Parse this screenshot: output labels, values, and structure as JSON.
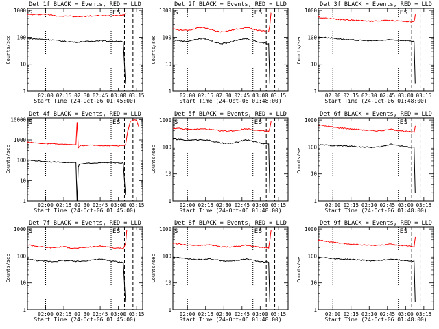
{
  "chart_data": [
    {
      "type": "line",
      "title": "Det 1f BLACK = Events, RED = LLD",
      "xlabel": "Start Time (24-Oct-06 01:45:00)",
      "ylabel": "Counts/sec",
      "x_ticks": [
        "02:00",
        "02:15",
        "02:30",
        "02:45",
        "03:00",
        "03:15"
      ],
      "y_ticks": [
        "1",
        "10",
        "100",
        "1000"
      ],
      "yscale": "log",
      "ylim": [
        1,
        1200
      ],
      "markers": [
        "S",
        "E",
        "S"
      ],
      "series": [
        {
          "color": "#ff0000",
          "x": [
            "01:45",
            "01:50",
            "01:55",
            "02:00",
            "02:05",
            "02:10",
            "02:15",
            "02:20",
            "02:25",
            "02:30",
            "02:35",
            "02:40",
            "02:45",
            "02:50",
            "02:55",
            "03:00",
            "03:04",
            "03:06"
          ],
          "values": [
            700,
            690,
            700,
            720,
            660,
            620,
            600,
            610,
            580,
            600,
            610,
            620,
            630,
            620,
            640,
            650,
            660,
            760
          ]
        },
        {
          "color": "#000000",
          "x": [
            "01:45",
            "01:50",
            "01:55",
            "02:00",
            "02:05",
            "02:10",
            "02:15",
            "02:20",
            "02:25",
            "02:30",
            "02:35",
            "02:40",
            "02:45",
            "02:50",
            "02:55",
            "03:00",
            "03:04",
            "03:06"
          ],
          "values": [
            90,
            88,
            85,
            83,
            80,
            75,
            70,
            68,
            66,
            68,
            70,
            72,
            75,
            72,
            70,
            72,
            66,
            2
          ]
        }
      ]
    },
    {
      "type": "line",
      "title": "Det 2f BLACK = Events, RED = LLD",
      "xlabel": "Start Time (24-Oct-06 01:48:00)",
      "ylabel": "Counts/sec",
      "x_ticks": [
        "02:00",
        "02:15",
        "02:30",
        "02:45",
        "03:00",
        "03:15"
      ],
      "y_ticks": [
        "1",
        "10",
        "100",
        "1000"
      ],
      "yscale": "log",
      "ylim": [
        1,
        1200
      ],
      "markers": [
        "S",
        "E",
        "S"
      ],
      "series": [
        {
          "color": "#ff0000",
          "x": [
            "01:48",
            "01:53",
            "01:58",
            "02:03",
            "02:08",
            "02:13",
            "02:18",
            "02:23",
            "02:28",
            "02:33",
            "02:38",
            "02:43",
            "02:48",
            "02:53",
            "02:58",
            "03:03",
            "03:07",
            "03:08",
            "03:09"
          ],
          "values": [
            200,
            190,
            180,
            190,
            220,
            230,
            200,
            170,
            160,
            170,
            190,
            210,
            230,
            210,
            180,
            170,
            160,
            300,
            800
          ]
        },
        {
          "color": "#000000",
          "x": [
            "01:48",
            "01:53",
            "01:58",
            "02:03",
            "02:08",
            "02:13",
            "02:18",
            "02:23",
            "02:28",
            "02:33",
            "02:38",
            "02:43",
            "02:48",
            "02:53",
            "02:58",
            "03:03",
            "03:07",
            "03:08"
          ],
          "values": [
            80,
            75,
            70,
            75,
            85,
            90,
            78,
            65,
            58,
            62,
            72,
            80,
            90,
            80,
            68,
            62,
            58,
            2
          ]
        }
      ]
    },
    {
      "type": "line",
      "title": "Det 3f BLACK = Events, RED = LLD",
      "xlabel": "Start Time (24-Oct-06 01:48:00)",
      "ylabel": "Counts/sec",
      "x_ticks": [
        "02:00",
        "02:15",
        "02:30",
        "02:45",
        "03:00",
        "03:15"
      ],
      "y_ticks": [
        "1",
        "10",
        "100",
        "1000"
      ],
      "yscale": "log",
      "ylim": [
        1,
        1200
      ],
      "markers": [
        "E",
        "S"
      ],
      "series": [
        {
          "color": "#ff0000",
          "x": [
            "01:48",
            "01:53",
            "01:58",
            "02:03",
            "02:08",
            "02:13",
            "02:18",
            "02:23",
            "02:28",
            "02:33",
            "02:38",
            "02:43",
            "02:48",
            "02:53",
            "02:58",
            "03:03",
            "03:07",
            "03:08"
          ],
          "values": [
            550,
            520,
            500,
            480,
            460,
            440,
            430,
            420,
            410,
            400,
            410,
            420,
            430,
            410,
            400,
            390,
            380,
            700
          ]
        },
        {
          "color": "#000000",
          "x": [
            "01:48",
            "01:53",
            "01:58",
            "02:03",
            "02:08",
            "02:13",
            "02:18",
            "02:23",
            "02:28",
            "02:33",
            "02:38",
            "02:43",
            "02:48",
            "02:53",
            "02:58",
            "03:03",
            "03:07",
            "03:08"
          ],
          "values": [
            100,
            98,
            95,
            90,
            85,
            80,
            78,
            76,
            75,
            74,
            76,
            78,
            80,
            78,
            76,
            74,
            70,
            2
          ]
        }
      ]
    },
    {
      "type": "line",
      "title": "Det 4f BLACK = Events, RED = LLD",
      "xlabel": "Start Time (24-Oct-06 01:45:00)",
      "ylabel": "Counts/sec",
      "x_ticks": [
        "02:00",
        "02:15",
        "02:30",
        "02:45",
        "03:00",
        "03:15"
      ],
      "y_ticks": [
        "1",
        "10",
        "100",
        "1000",
        "10000"
      ],
      "yscale": "log",
      "ylim": [
        1,
        12000
      ],
      "markers": [
        "S",
        "E",
        "S"
      ],
      "series": [
        {
          "color": "#ff0000",
          "x": [
            "01:45",
            "01:50",
            "01:55",
            "02:00",
            "02:05",
            "02:10",
            "02:15",
            "02:20",
            "02:25",
            "02:26",
            "02:27",
            "02:28",
            "02:30",
            "02:35",
            "02:40",
            "02:45",
            "02:50",
            "02:55",
            "03:00",
            "03:04",
            "03:06",
            "03:08",
            "03:10",
            "03:13",
            "03:15",
            "03:17"
          ],
          "values": [
            800,
            720,
            680,
            660,
            640,
            620,
            600,
            580,
            560,
            7000,
            400,
            500,
            520,
            540,
            540,
            530,
            520,
            520,
            510,
            520,
            600,
            3000,
            8000,
            9500,
            9000,
            4000
          ]
        },
        {
          "color": "#000000",
          "x": [
            "01:45",
            "01:50",
            "01:55",
            "02:00",
            "02:05",
            "02:10",
            "02:15",
            "02:20",
            "02:25",
            "02:26",
            "02:27",
            "02:28",
            "02:30",
            "02:35",
            "02:40",
            "02:45",
            "02:50",
            "02:55",
            "03:00",
            "03:04",
            "03:06"
          ],
          "values": [
            100,
            95,
            90,
            85,
            82,
            80,
            78,
            76,
            74,
            1,
            50,
            60,
            65,
            70,
            72,
            74,
            75,
            75,
            74,
            70,
            2
          ]
        }
      ]
    },
    {
      "type": "line",
      "title": "Det 5f BLACK = Events, RED = LLD",
      "xlabel": "Start Time (24-Oct-06 01:48:00)",
      "ylabel": "Counts/sec",
      "x_ticks": [
        "02:00",
        "02:15",
        "02:30",
        "02:45",
        "03:00",
        "03:15"
      ],
      "y_ticks": [
        "1",
        "10",
        "100",
        "1000"
      ],
      "yscale": "log",
      "ylim": [
        1,
        1200
      ],
      "markers": [
        "S",
        "E",
        "S"
      ],
      "series": [
        {
          "color": "#ff0000",
          "x": [
            "01:48",
            "01:53",
            "01:58",
            "02:03",
            "02:08",
            "02:13",
            "02:18",
            "02:23",
            "02:28",
            "02:33",
            "02:38",
            "02:43",
            "02:48",
            "02:53",
            "02:58",
            "03:03",
            "03:07",
            "03:08",
            "03:09"
          ],
          "values": [
            500,
            480,
            460,
            450,
            460,
            470,
            450,
            420,
            400,
            390,
            400,
            430,
            480,
            450,
            410,
            390,
            380,
            500,
            900
          ]
        },
        {
          "color": "#000000",
          "x": [
            "01:48",
            "01:53",
            "01:58",
            "02:03",
            "02:08",
            "02:13",
            "02:18",
            "02:23",
            "02:28",
            "02:33",
            "02:38",
            "02:43",
            "02:48",
            "02:53",
            "02:58",
            "03:03",
            "03:07",
            "03:08"
          ],
          "values": [
            200,
            190,
            180,
            180,
            185,
            190,
            175,
            155,
            140,
            135,
            140,
            160,
            190,
            170,
            145,
            135,
            130,
            2
          ]
        }
      ]
    },
    {
      "type": "line",
      "title": "Det 6f BLACK = Events, RED = LLD",
      "xlabel": "Start Time (24-Oct-06 01:48:00)",
      "ylabel": "Counts/sec",
      "x_ticks": [
        "02:00",
        "02:15",
        "02:30",
        "02:45",
        "03:00",
        "03:15"
      ],
      "y_ticks": [
        "1",
        "10",
        "100",
        "1000"
      ],
      "yscale": "log",
      "ylim": [
        1,
        1200
      ],
      "markers": [
        "E",
        "S"
      ],
      "series": [
        {
          "color": "#ff0000",
          "x": [
            "01:48",
            "01:53",
            "01:58",
            "02:03",
            "02:08",
            "02:13",
            "02:18",
            "02:23",
            "02:28",
            "02:33",
            "02:38",
            "02:43",
            "02:48",
            "02:53",
            "02:58",
            "03:03",
            "03:07",
            "03:08"
          ],
          "values": [
            650,
            600,
            560,
            520,
            500,
            480,
            460,
            440,
            420,
            400,
            400,
            420,
            450,
            420,
            390,
            370,
            350,
            600
          ]
        },
        {
          "color": "#000000",
          "x": [
            "01:48",
            "01:53",
            "01:58",
            "02:03",
            "02:08",
            "02:13",
            "02:18",
            "02:23",
            "02:28",
            "02:33",
            "02:38",
            "02:43",
            "02:48",
            "02:53",
            "02:58",
            "03:03",
            "03:07",
            "03:08"
          ],
          "values": [
            120,
            118,
            115,
            112,
            110,
            108,
            105,
            100,
            98,
            96,
            100,
            110,
            130,
            115,
            105,
            100,
            95,
            2
          ]
        }
      ]
    },
    {
      "type": "line",
      "title": "Det 7f BLACK = Events, RED = LLD",
      "xlabel": "Start Time (24-Oct-06 01:45:00)",
      "ylabel": "Counts/sec",
      "x_ticks": [
        "02:00",
        "02:15",
        "02:30",
        "02:45",
        "03:00",
        "03:15"
      ],
      "y_ticks": [
        "1",
        "10",
        "100",
        "1000"
      ],
      "yscale": "log",
      "ylim": [
        1,
        1200
      ],
      "markers": [
        "S",
        "E",
        "S"
      ],
      "series": [
        {
          "color": "#ff0000",
          "x": [
            "01:45",
            "01:50",
            "01:55",
            "02:00",
            "02:05",
            "02:10",
            "02:15",
            "02:20",
            "02:25",
            "02:30",
            "02:35",
            "02:40",
            "02:45",
            "02:50",
            "02:55",
            "03:00",
            "03:04",
            "03:06",
            "03:07"
          ],
          "values": [
            260,
            240,
            220,
            210,
            200,
            210,
            220,
            200,
            190,
            200,
            210,
            220,
            230,
            220,
            200,
            190,
            190,
            300,
            900
          ]
        },
        {
          "color": "#000000",
          "x": [
            "01:45",
            "01:50",
            "01:55",
            "02:00",
            "02:05",
            "02:10",
            "02:15",
            "02:20",
            "02:25",
            "02:30",
            "02:35",
            "02:40",
            "02:45",
            "02:50",
            "02:55",
            "03:00",
            "03:04",
            "03:06"
          ],
          "values": [
            75,
            70,
            66,
            64,
            62,
            64,
            68,
            66,
            62,
            64,
            68,
            72,
            75,
            70,
            64,
            60,
            58,
            2
          ]
        }
      ]
    },
    {
      "type": "line",
      "title": "Det 8f BLACK = Events, RED = LLD",
      "xlabel": "Start Time (24-Oct-06 01:48:00)",
      "ylabel": "Counts/sec",
      "x_ticks": [
        "02:00",
        "02:15",
        "02:30",
        "02:45",
        "03:00",
        "03:15"
      ],
      "y_ticks": [
        "1",
        "10",
        "100",
        "1000"
      ],
      "yscale": "log",
      "ylim": [
        1,
        1200
      ],
      "markers": [
        "S",
        "E",
        "S"
      ],
      "series": [
        {
          "color": "#ff0000",
          "x": [
            "01:48",
            "01:53",
            "01:58",
            "02:03",
            "02:08",
            "02:13",
            "02:18",
            "02:23",
            "02:28",
            "02:33",
            "02:38",
            "02:43",
            "02:48",
            "02:53",
            "02:58",
            "03:03",
            "03:07",
            "03:08",
            "03:09"
          ],
          "values": [
            300,
            280,
            260,
            250,
            240,
            250,
            260,
            240,
            220,
            215,
            220,
            230,
            250,
            230,
            215,
            205,
            200,
            400,
            900
          ]
        },
        {
          "color": "#000000",
          "x": [
            "01:48",
            "01:53",
            "01:58",
            "02:03",
            "02:08",
            "02:13",
            "02:18",
            "02:23",
            "02:28",
            "02:33",
            "02:38",
            "02:43",
            "02:48",
            "02:53",
            "02:58",
            "03:03",
            "03:07",
            "03:08"
          ],
          "values": [
            90,
            85,
            80,
            75,
            72,
            74,
            78,
            72,
            66,
            64,
            66,
            70,
            76,
            70,
            64,
            60,
            58,
            2
          ]
        }
      ]
    },
    {
      "type": "line",
      "title": "Det 9f BLACK = Events, RED = LLD",
      "xlabel": "Start Time (24-Oct-06 01:48:00)",
      "ylabel": "Counts/sec",
      "x_ticks": [
        "02:00",
        "02:15",
        "02:30",
        "02:45",
        "03:00",
        "03:15"
      ],
      "y_ticks": [
        "1",
        "10",
        "100",
        "1000"
      ],
      "yscale": "log",
      "ylim": [
        1,
        1200
      ],
      "markers": [
        "E",
        "S"
      ],
      "series": [
        {
          "color": "#ff0000",
          "x": [
            "01:48",
            "01:53",
            "01:58",
            "02:03",
            "02:08",
            "02:13",
            "02:18",
            "02:23",
            "02:28",
            "02:33",
            "02:38",
            "02:43",
            "02:48",
            "02:53",
            "02:58",
            "03:03",
            "03:07",
            "03:08"
          ],
          "values": [
            400,
            360,
            330,
            310,
            290,
            280,
            270,
            260,
            250,
            245,
            250,
            260,
            270,
            255,
            240,
            230,
            220,
            500
          ]
        },
        {
          "color": "#000000",
          "x": [
            "01:48",
            "01:53",
            "01:58",
            "02:03",
            "02:08",
            "02:13",
            "02:18",
            "02:23",
            "02:28",
            "02:33",
            "02:38",
            "02:43",
            "02:48",
            "02:53",
            "02:58",
            "03:03",
            "03:07",
            "03:08"
          ],
          "values": [
            90,
            86,
            82,
            78,
            75,
            74,
            72,
            70,
            68,
            66,
            68,
            70,
            76,
            72,
            68,
            66,
            64,
            2
          ]
        }
      ]
    }
  ]
}
